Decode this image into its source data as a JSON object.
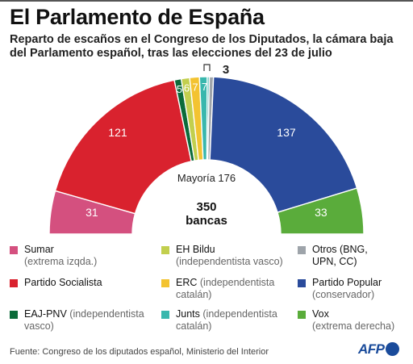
{
  "title": "El Parlamento de España",
  "subtitle": "Reparto de escaños en el Congreso de los Diputados, la cámara baja del Parlamento español, tras las elecciones del 23 de julio",
  "chart_data": {
    "type": "pie",
    "subtype": "hemicycle",
    "total_seats": 350,
    "center_label_number": "350",
    "center_label_unit": "bancas",
    "majority_label": "Mayoría 176",
    "majority": 176,
    "series": [
      {
        "name": "Sumar",
        "value": 31,
        "color": "#d4507f"
      },
      {
        "name": "Partido Socialista",
        "value": 121,
        "color": "#d9222e"
      },
      {
        "name": "EAJ-PNV",
        "value": 5,
        "color": "#0c6b3a"
      },
      {
        "name": "EH Bildu",
        "value": 6,
        "color": "#c2cf4e"
      },
      {
        "name": "ERC",
        "value": 7,
        "color": "#f3c331"
      },
      {
        "name": "Junts",
        "value": 7,
        "color": "#39b7ad"
      },
      {
        "name": "Otros",
        "value": 3,
        "color": "#9ea4aa"
      },
      {
        "name": "Partido Popular",
        "value": 137,
        "color": "#2a4b9b"
      },
      {
        "name": "Vox",
        "value": 33,
        "color": "#5aac3b"
      }
    ]
  },
  "legend": [
    {
      "name": "Sumar",
      "desc": "(extrema izqda.)",
      "color": "#d4507f"
    },
    {
      "name": "EH Bildu",
      "desc": "(independentista vasco)",
      "color": "#c2cf4e"
    },
    {
      "name": "Otros (BNG,",
      "desc": "UPN, CC)",
      "color": "#9ea4aa",
      "desc_dark": true
    },
    {
      "name": "Partido Socialista",
      "desc": "",
      "color": "#d9222e"
    },
    {
      "name": "ERC",
      "desc": "(independentista",
      "desc2": "catalán)",
      "color": "#f3c331"
    },
    {
      "name": "Partido Popular",
      "desc": "(conservador)",
      "color": "#2a4b9b"
    },
    {
      "name": "EAJ-PNV",
      "desc": "(independentista",
      "desc2": "vasco)",
      "color": "#0c6b3a"
    },
    {
      "name": "Junts",
      "desc": "(independentista",
      "desc2": "catalán)",
      "color": "#39b7ad"
    },
    {
      "name": "Vox",
      "desc": "(extrema derecha)",
      "color": "#5aac3b"
    }
  ],
  "source": "Fuente: Congreso de los diputados español, Ministerio del Interior",
  "logo_text": "AFP"
}
